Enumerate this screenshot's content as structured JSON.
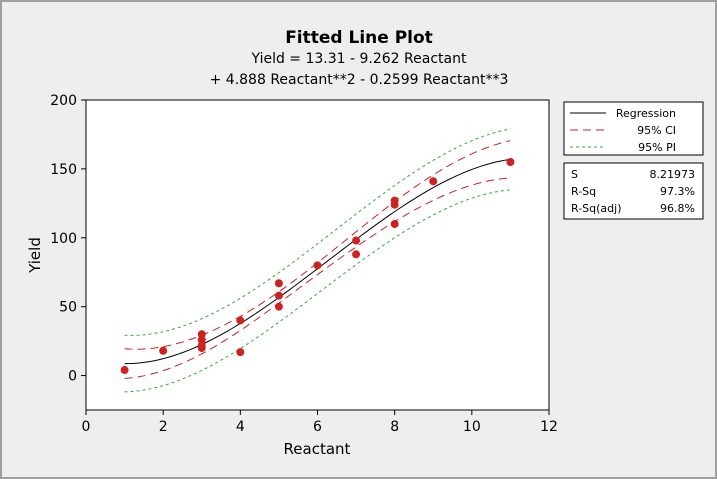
{
  "chart_data": {
    "type": "scatter",
    "title": "Fitted Line Plot",
    "subtitle_lines": [
      "Yield =  13.31 - 9.262 Reactant",
      "+ 4.888 Reactant**2 - 0.2599 Reactant**3"
    ],
    "xlabel": "Reactant",
    "ylabel": "Yield",
    "xlim": [
      0,
      12
    ],
    "ylim": [
      -25,
      200
    ],
    "xticks": [
      0,
      2,
      4,
      6,
      8,
      10,
      12
    ],
    "yticks": [
      0,
      50,
      100,
      150,
      200
    ],
    "grid": false,
    "coefficients": [
      13.31,
      -9.262,
      4.888,
      -0.2599
    ],
    "fit_range": [
      1,
      11
    ],
    "points": [
      {
        "x": 1,
        "y": 4
      },
      {
        "x": 2,
        "y": 18
      },
      {
        "x": 3,
        "y": 30
      },
      {
        "x": 3,
        "y": 26
      },
      {
        "x": 3,
        "y": 22
      },
      {
        "x": 3,
        "y": 20
      },
      {
        "x": 4,
        "y": 40
      },
      {
        "x": 4,
        "y": 17
      },
      {
        "x": 5,
        "y": 67
      },
      {
        "x": 5,
        "y": 58
      },
      {
        "x": 5,
        "y": 50
      },
      {
        "x": 6,
        "y": 80
      },
      {
        "x": 7,
        "y": 98
      },
      {
        "x": 7,
        "y": 88
      },
      {
        "x": 8,
        "y": 127
      },
      {
        "x": 8,
        "y": 124
      },
      {
        "x": 8,
        "y": 110
      },
      {
        "x": 9,
        "y": 141
      },
      {
        "x": 11,
        "y": 155
      }
    ],
    "series": [
      {
        "name": "Regression",
        "style": "solid",
        "color": "#000000"
      },
      {
        "name": "95% CI",
        "style": "long-dash",
        "color": "#cc2222"
      },
      {
        "name": "95% PI",
        "style": "short-dash",
        "color": "#33aa33"
      }
    ],
    "legend_position": "right",
    "point_color": "#cc2222",
    "stats": [
      {
        "label": "S",
        "value": "8.21973"
      },
      {
        "label": "R-Sq",
        "value": "97.3%"
      },
      {
        "label": "R-Sq(adj)",
        "value": "96.8%"
      }
    ]
  }
}
